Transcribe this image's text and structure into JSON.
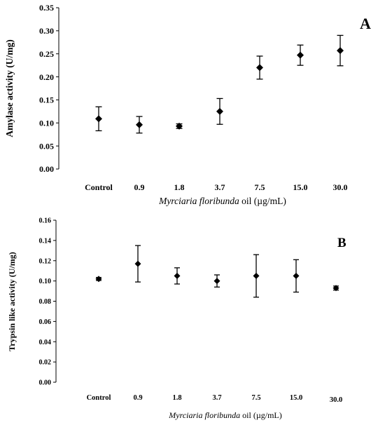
{
  "chart_data": [
    {
      "type": "scatter",
      "panel_label": "A",
      "ylabel": "Amylase activity (U/mg)",
      "xlabel_italic": "Myrciaria floribunda",
      "xlabel_rest": " oil (µg/mL)",
      "categories": [
        "Control",
        "0.9",
        "1.8",
        "3.7",
        "7.5",
        "15.0",
        "30.0"
      ],
      "values": [
        0.109,
        0.096,
        0.093,
        0.125,
        0.22,
        0.247,
        0.257
      ],
      "errors": [
        0.026,
        0.018,
        0.005,
        0.028,
        0.025,
        0.022,
        0.033
      ],
      "ylim": [
        0,
        0.35
      ],
      "yticks": [
        "0.00",
        "0.05",
        "0.10",
        "0.15",
        "0.20",
        "0.25",
        "0.30",
        "0.35"
      ],
      "grid": false
    },
    {
      "type": "scatter",
      "panel_label": "B",
      "ylabel": "Trypsin like activity (U/mg)",
      "xlabel_italic": "Myrciaria floribunda",
      "xlabel_rest": " oil (µg/mL)",
      "categories": [
        "Control",
        "0.9",
        "1.8",
        "3.7",
        "7.5",
        "15.0",
        "30.0"
      ],
      "values": [
        0.102,
        0.117,
        0.105,
        0.1,
        0.105,
        0.105,
        0.093
      ],
      "errors": [
        0.0015,
        0.018,
        0.008,
        0.006,
        0.021,
        0.016,
        0.002
      ],
      "ylim": [
        0,
        0.16
      ],
      "yticks": [
        "0.00",
        "0.02",
        "0.04",
        "0.06",
        "0.08",
        "0.10",
        "0.12",
        "0.14",
        "0.16"
      ],
      "grid": false
    }
  ]
}
